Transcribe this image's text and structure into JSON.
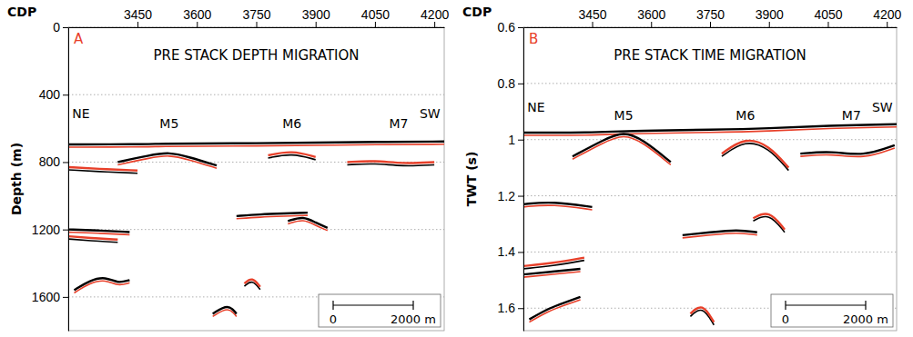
{
  "chart_data": [
    {
      "type": "line",
      "panel": "A",
      "title": "PRE STACK DEPTH MIGRATION",
      "x_label": "CDP",
      "y_label": "Depth (m)",
      "xlim": [
        3275,
        4225
      ],
      "ylim": [
        0,
        1800
      ],
      "xticks": [
        3450,
        3600,
        3750,
        3900,
        4050,
        4200
      ],
      "yticks": [
        0,
        400,
        800,
        1200,
        1600
      ],
      "grid": true,
      "annotations": [
        {
          "text": "NE",
          "x": 3285,
          "y": 540
        },
        {
          "text": "M5",
          "x": 3530,
          "y": 600
        },
        {
          "text": "M6",
          "x": 3840,
          "y": 600
        },
        {
          "text": "M7",
          "x": 4110,
          "y": 600
        },
        {
          "text": "SW",
          "x": 4215,
          "y": 540
        }
      ],
      "series": [
        {
          "color": "#000000",
          "x": [
            3275,
            3450,
            3520,
            3600,
            3750,
            3900,
            4050,
            4225
          ],
          "values": [
            695,
            695,
            690,
            690,
            688,
            685,
            680,
            678
          ]
        },
        {
          "color": "#000000",
          "x": [
            3400,
            3480,
            3530,
            3580,
            3650
          ],
          "values": [
            800,
            760,
            740,
            770,
            820
          ]
        },
        {
          "color": "#e8402a",
          "x": [
            3275,
            3350,
            3450
          ],
          "values": [
            830,
            840,
            850
          ]
        },
        {
          "color": "#000000",
          "x": [
            3275,
            3350,
            3430
          ],
          "values": [
            1200,
            1205,
            1215
          ]
        },
        {
          "color": "#e8402a",
          "x": [
            3275,
            3330,
            3400
          ],
          "values": [
            1240,
            1250,
            1260
          ]
        },
        {
          "color": "#000000",
          "x": [
            3290,
            3330,
            3370,
            3400,
            3430
          ],
          "values": [
            1560,
            1500,
            1480,
            1520,
            1500
          ]
        },
        {
          "color": "#000000",
          "x": [
            3700,
            3760,
            3820,
            3880
          ],
          "values": [
            1120,
            1110,
            1105,
            1100
          ]
        },
        {
          "color": "#e8402a",
          "x": [
            3780,
            3840,
            3900
          ],
          "values": [
            760,
            730,
            770
          ]
        },
        {
          "color": "#000000",
          "x": [
            3830,
            3870,
            3900,
            3930
          ],
          "values": [
            1150,
            1120,
            1160,
            1190
          ]
        },
        {
          "color": "#e8402a",
          "x": [
            3980,
            4050,
            4120,
            4200
          ],
          "values": [
            800,
            790,
            810,
            800
          ]
        },
        {
          "color": "#000000",
          "x": [
            3640,
            3680,
            3700
          ],
          "values": [
            1700,
            1640,
            1700
          ]
        },
        {
          "color": "#e8402a",
          "x": [
            3720,
            3740,
            3760
          ],
          "values": [
            1520,
            1480,
            1540
          ]
        }
      ],
      "scale_bar": {
        "range": [
          0,
          2000
        ],
        "ticks": [
          0,
          {
            "value": 2000,
            "label": "2000 m"
          }
        ]
      }
    },
    {
      "type": "line",
      "panel": "B",
      "title": "PRE STACK TIME MIGRATION",
      "x_label": "CDP",
      "y_label": "TWT (s)",
      "xlim": [
        3275,
        4225
      ],
      "ylim": [
        0.6,
        1.68
      ],
      "xticks": [
        3450,
        3600,
        3750,
        3900,
        4050,
        4200
      ],
      "yticks": [
        0.6,
        0.8,
        1,
        1.2,
        1.4,
        1.6
      ],
      "grid": true,
      "annotations": [
        {
          "text": "NE",
          "x": 3285,
          "y": 0.9
        },
        {
          "text": "M5",
          "x": 3530,
          "y": 0.93
        },
        {
          "text": "M6",
          "x": 3840,
          "y": 0.93
        },
        {
          "text": "M7",
          "x": 4110,
          "y": 0.93
        },
        {
          "text": "SW",
          "x": 4215,
          "y": 0.9
        }
      ],
      "series": [
        {
          "color": "#000000",
          "x": [
            3275,
            3450,
            3520,
            3600,
            3750,
            3900,
            4050,
            4225
          ],
          "values": [
            0.975,
            0.975,
            0.97,
            0.968,
            0.965,
            0.96,
            0.95,
            0.945
          ]
        },
        {
          "color": "#000000",
          "x": [
            3400,
            3480,
            3530,
            3580,
            3650
          ],
          "values": [
            1.06,
            1.0,
            0.97,
            1.0,
            1.08
          ]
        },
        {
          "color": "#e8402a",
          "x": [
            3780,
            3840,
            3900,
            3950
          ],
          "values": [
            1.05,
            0.99,
            1.02,
            1.1
          ]
        },
        {
          "color": "#000000",
          "x": [
            3275,
            3350,
            3450
          ],
          "values": [
            1.23,
            1.22,
            1.24
          ]
        },
        {
          "color": "#e8402a",
          "x": [
            3275,
            3350,
            3430
          ],
          "values": [
            1.45,
            1.44,
            1.42
          ]
        },
        {
          "color": "#000000",
          "x": [
            3275,
            3350,
            3420
          ],
          "values": [
            1.48,
            1.47,
            1.46
          ]
        },
        {
          "color": "#000000",
          "x": [
            3680,
            3750,
            3820,
            3870
          ],
          "values": [
            1.34,
            1.33,
            1.32,
            1.33
          ]
        },
        {
          "color": "#e8402a",
          "x": [
            3860,
            3900,
            3940
          ],
          "values": [
            1.28,
            1.25,
            1.32
          ]
        },
        {
          "color": "#000000",
          "x": [
            3290,
            3340,
            3380,
            3420
          ],
          "values": [
            1.64,
            1.6,
            1.58,
            1.56
          ]
        },
        {
          "color": "#e8402a",
          "x": [
            3700,
            3730,
            3760
          ],
          "values": [
            1.62,
            1.58,
            1.65
          ]
        },
        {
          "color": "#000000",
          "x": [
            3980,
            4060,
            4140,
            4220
          ],
          "values": [
            1.05,
            1.04,
            1.06,
            1.02
          ]
        }
      ],
      "scale_bar": {
        "range": [
          0,
          2000
        ],
        "ticks": [
          0,
          {
            "value": 2000,
            "label": "2000 m"
          }
        ]
      }
    }
  ]
}
